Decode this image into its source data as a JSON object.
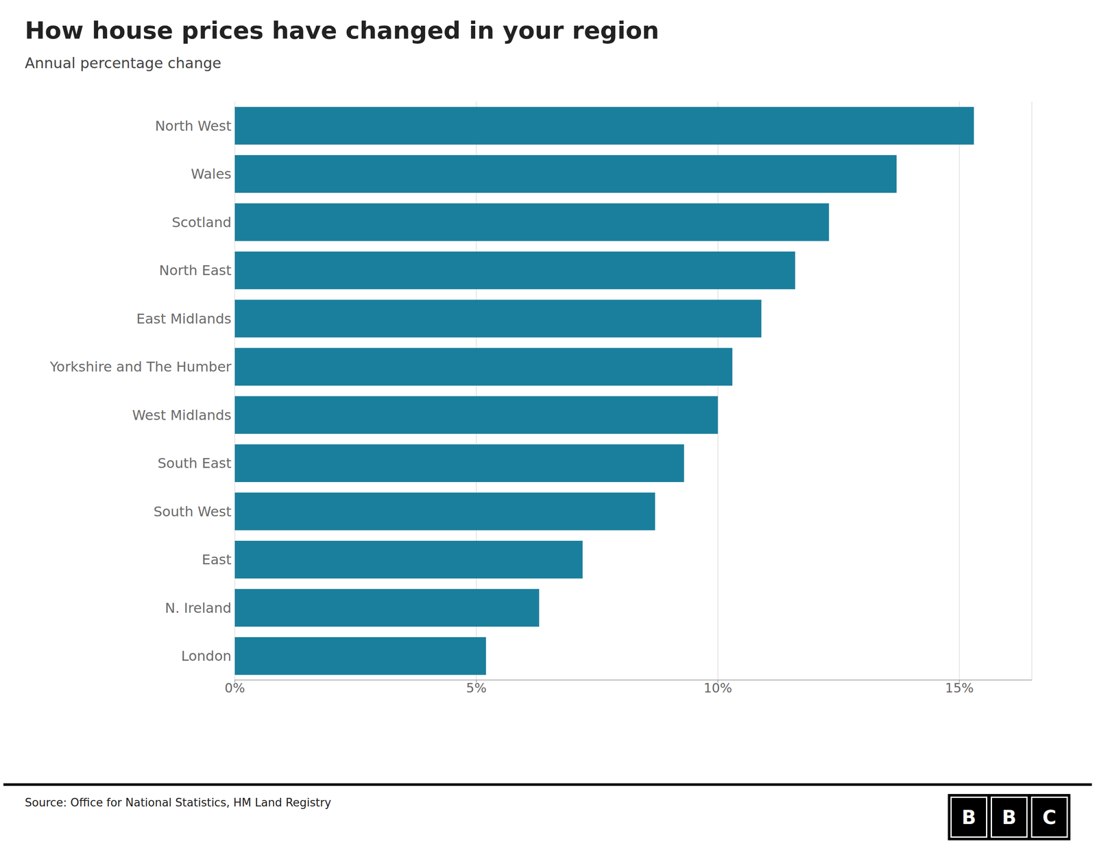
{
  "chart_data": {
    "type": "bar",
    "orientation": "horizontal",
    "title": "How house prices have changed in your region",
    "subtitle": "Annual percentage change",
    "annotations": [
      "Source: Office for National Statistics, HM Land Registry",
      "BBC"
    ],
    "categories": [
      "North West",
      "Wales",
      "Scotland",
      "North East",
      "East Midlands",
      "Yorkshire and The Humber",
      "West Midlands",
      "South East",
      "South West",
      "East",
      "N. Ireland",
      "London"
    ],
    "values": [
      15.3,
      13.7,
      12.3,
      11.6,
      10.9,
      10.3,
      10.0,
      9.3,
      8.7,
      7.2,
      6.3,
      5.2
    ],
    "color": "#1a7f9c",
    "xlim": [
      0,
      16.5
    ],
    "xticks": [
      {
        "value": 0,
        "label": "0%"
      },
      {
        "value": 5,
        "label": "5%"
      },
      {
        "value": 10,
        "label": "10%"
      },
      {
        "value": 15,
        "label": "15%"
      }
    ],
    "grid": true
  }
}
